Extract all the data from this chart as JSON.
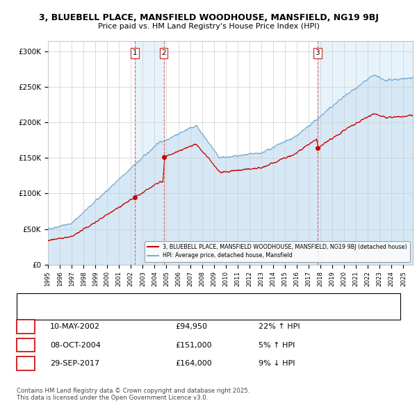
{
  "title_line1": "3, BLUEBELL PLACE, MANSFIELD WOODHOUSE, MANSFIELD, NG19 9BJ",
  "title_line2": "Price paid vs. HM Land Registry's House Price Index (HPI)",
  "ylabel_ticks": [
    "£0",
    "£50K",
    "£100K",
    "£150K",
    "£200K",
    "£250K",
    "£300K"
  ],
  "ytick_vals": [
    0,
    50000,
    100000,
    150000,
    200000,
    250000,
    300000
  ],
  "ylim": [
    0,
    315000
  ],
  "xlim_start": 1995.0,
  "xlim_end": 2025.8,
  "sale_t": [
    2002.356,
    2004.771,
    2017.745
  ],
  "sale_prices": [
    94950,
    151000,
    164000
  ],
  "sale_labels": [
    "1",
    "2",
    "3"
  ],
  "legend_line1": "3, BLUEBELL PLACE, MANSFIELD WOODHOUSE, MANSFIELD, NG19 9BJ (detached house)",
  "legend_line2": "HPI: Average price, detached house, Mansfield",
  "line_color_red": "#cc0000",
  "line_color_blue": "#7aadd4",
  "fill_color_blue": "#d6e8f5",
  "background_color": "#ffffff",
  "grid_color": "#cccccc",
  "footer_text": "Contains HM Land Registry data © Crown copyright and database right 2025.\nThis data is licensed under the Open Government Licence v3.0.",
  "table_entries": [
    {
      "label": "1",
      "date": "10-MAY-2002",
      "price": "£94,950",
      "pct": "22% ↑ HPI"
    },
    {
      "label": "2",
      "date": "08-OCT-2004",
      "price": "£151,000",
      "pct": "5% ↑ HPI"
    },
    {
      "label": "3",
      "date": "29-SEP-2017",
      "price": "£164,000",
      "pct": "9% ↓ HPI"
    }
  ]
}
